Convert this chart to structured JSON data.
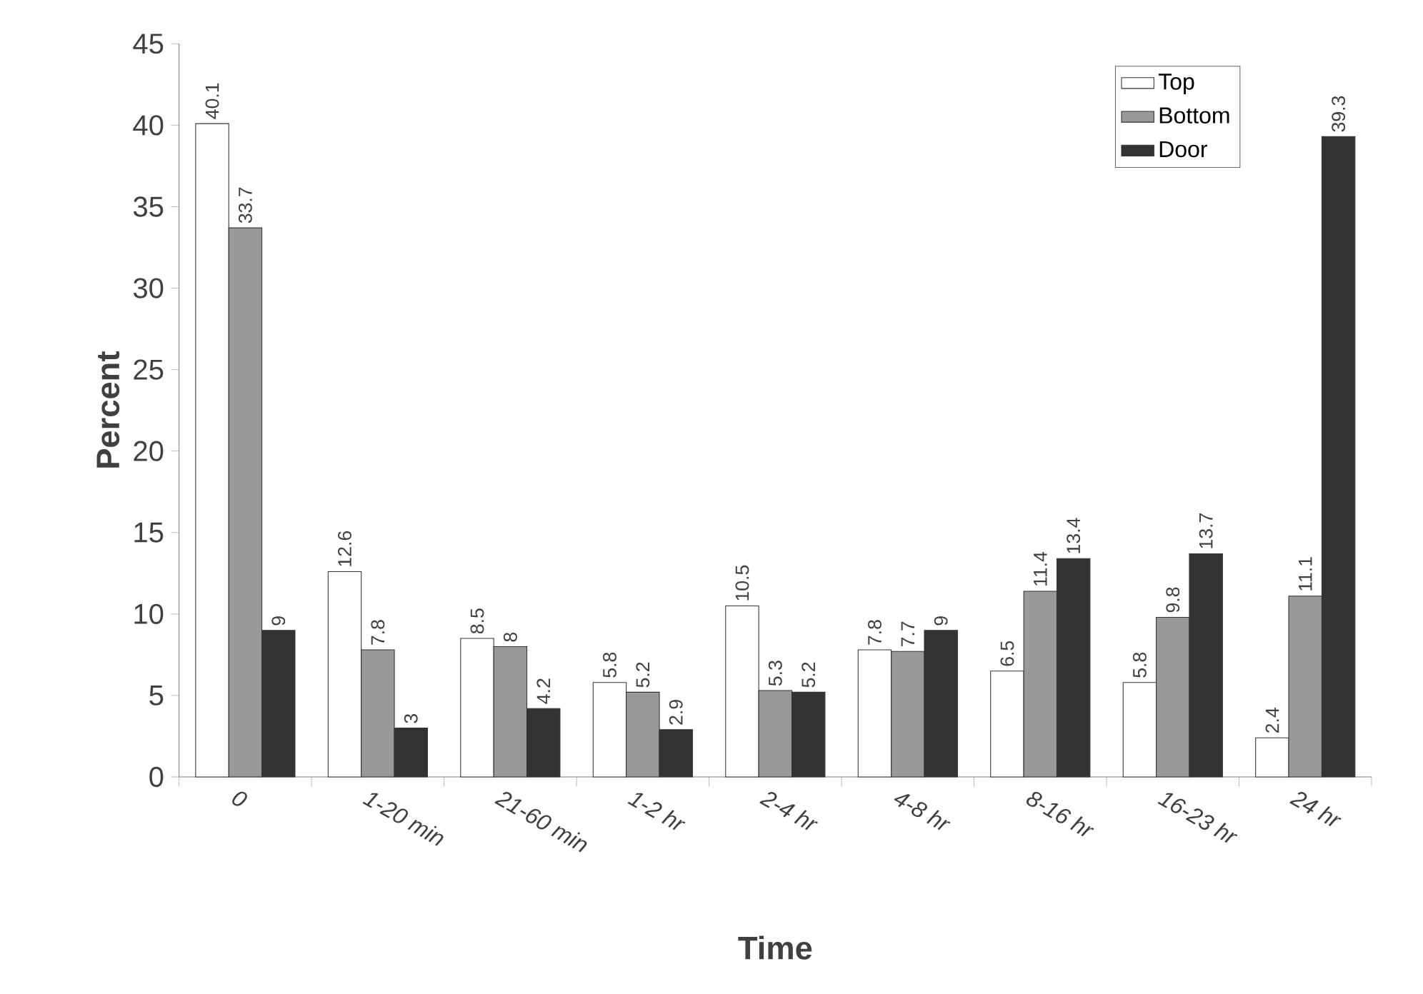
{
  "chart_data": {
    "type": "bar",
    "xlabel": "Time",
    "ylabel": "Percent",
    "categories": [
      "0",
      "1-20 min",
      "21-60 min",
      "1-2 hr",
      "2-4 hr",
      "4-8 hr",
      "8-16 hr",
      "16-23 hr",
      "24 hr"
    ],
    "series": [
      {
        "name": "Top",
        "color": "#ffffff",
        "values": [
          40.1,
          12.6,
          8.5,
          5.8,
          10.5,
          7.8,
          6.5,
          5.8,
          2.4
        ]
      },
      {
        "name": "Bottom",
        "color": "#999999",
        "values": [
          33.7,
          7.8,
          8,
          5.2,
          5.3,
          7.7,
          11.4,
          9.8,
          11.1
        ]
      },
      {
        "name": "Door",
        "color": "#333333",
        "values": [
          9,
          3,
          4.2,
          2.9,
          5.2,
          9,
          13.4,
          13.7,
          39.3
        ]
      }
    ],
    "ylim": [
      0,
      45
    ],
    "yticks": [
      0,
      5,
      10,
      15,
      20,
      25,
      30,
      35,
      40,
      45
    ],
    "data_labels": true,
    "legend": "top right"
  }
}
